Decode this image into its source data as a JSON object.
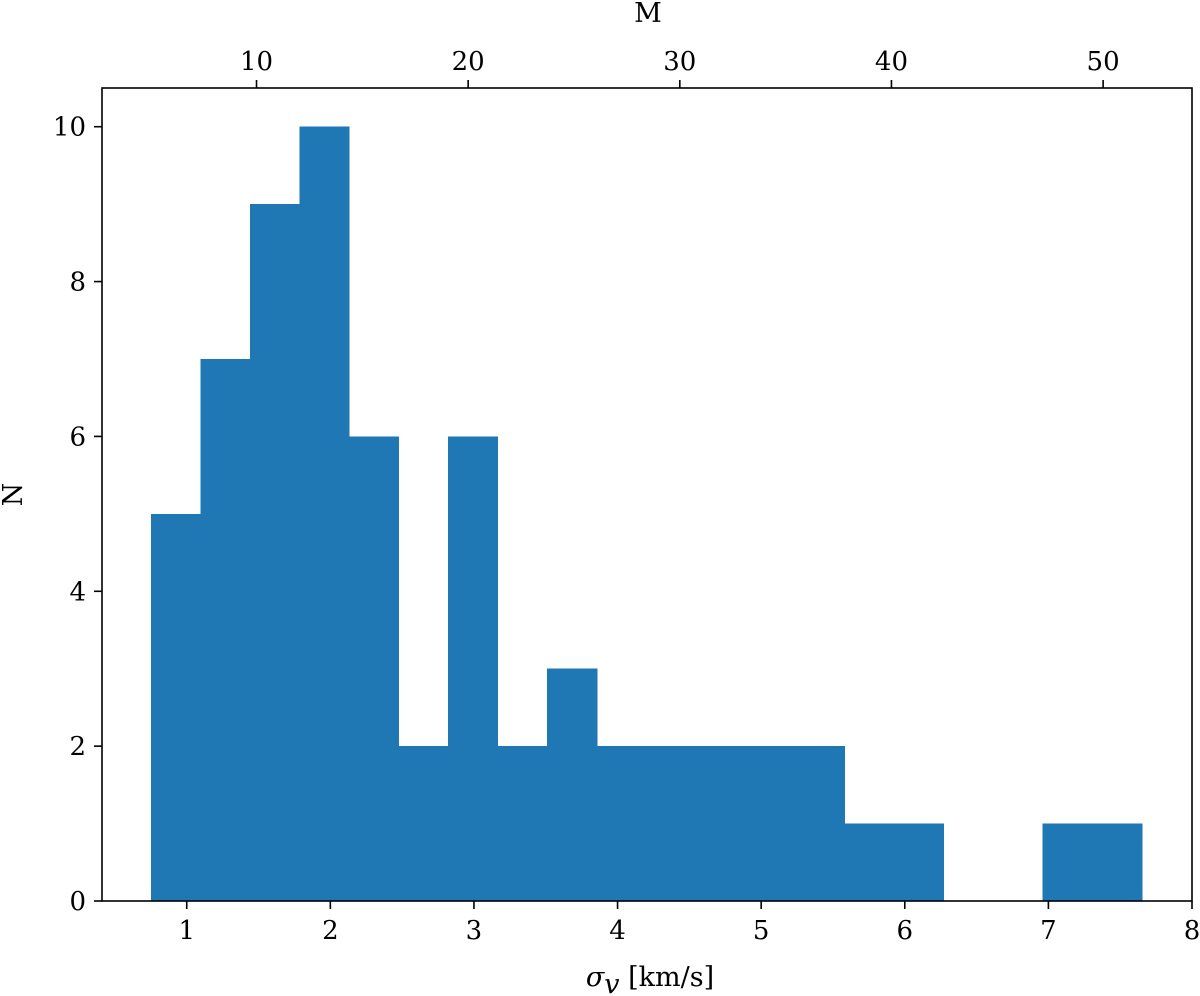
{
  "chart_data": {
    "type": "bar",
    "subtype": "histogram",
    "bar_color": "#1f77b4",
    "bins": [
      {
        "x0": 0.75,
        "x1": 1.095,
        "count": 5
      },
      {
        "x0": 1.095,
        "x1": 1.44,
        "count": 7
      },
      {
        "x0": 1.44,
        "x1": 1.785,
        "count": 9
      },
      {
        "x0": 1.785,
        "x1": 2.13,
        "count": 10
      },
      {
        "x0": 2.13,
        "x1": 2.475,
        "count": 6
      },
      {
        "x0": 2.475,
        "x1": 2.82,
        "count": 2
      },
      {
        "x0": 2.82,
        "x1": 3.165,
        "count": 6
      },
      {
        "x0": 3.165,
        "x1": 3.51,
        "count": 2
      },
      {
        "x0": 3.51,
        "x1": 3.855,
        "count": 3
      },
      {
        "x0": 3.855,
        "x1": 4.2,
        "count": 2
      },
      {
        "x0": 4.2,
        "x1": 4.545,
        "count": 2
      },
      {
        "x0": 4.545,
        "x1": 4.89,
        "count": 2
      },
      {
        "x0": 4.89,
        "x1": 5.235,
        "count": 2
      },
      {
        "x0": 5.235,
        "x1": 5.58,
        "count": 2
      },
      {
        "x0": 5.58,
        "x1": 5.925,
        "count": 1
      },
      {
        "x0": 5.925,
        "x1": 6.27,
        "count": 1
      },
      {
        "x0": 6.27,
        "x1": 6.615,
        "count": 0
      },
      {
        "x0": 6.615,
        "x1": 6.96,
        "count": 0
      },
      {
        "x0": 6.96,
        "x1": 7.305,
        "count": 1
      },
      {
        "x0": 7.305,
        "x1": 7.65,
        "count": 1
      }
    ],
    "xlabel": "σ",
    "xlabel_sub": "v",
    "xlabel_unit": " [km/s]",
    "ylabel": "N",
    "top_xlabel": "M",
    "xlim": [
      0.41,
      8.0
    ],
    "ylim": [
      0,
      10.5
    ],
    "xticks": [
      1,
      2,
      3,
      4,
      5,
      6,
      7,
      8
    ],
    "yticks": [
      0,
      2,
      4,
      6,
      8,
      10
    ],
    "top_xlim": [
      2.7,
      54.2
    ],
    "top_xticks": [
      10,
      20,
      30,
      40,
      50
    ],
    "grid": false,
    "legend": "none"
  }
}
